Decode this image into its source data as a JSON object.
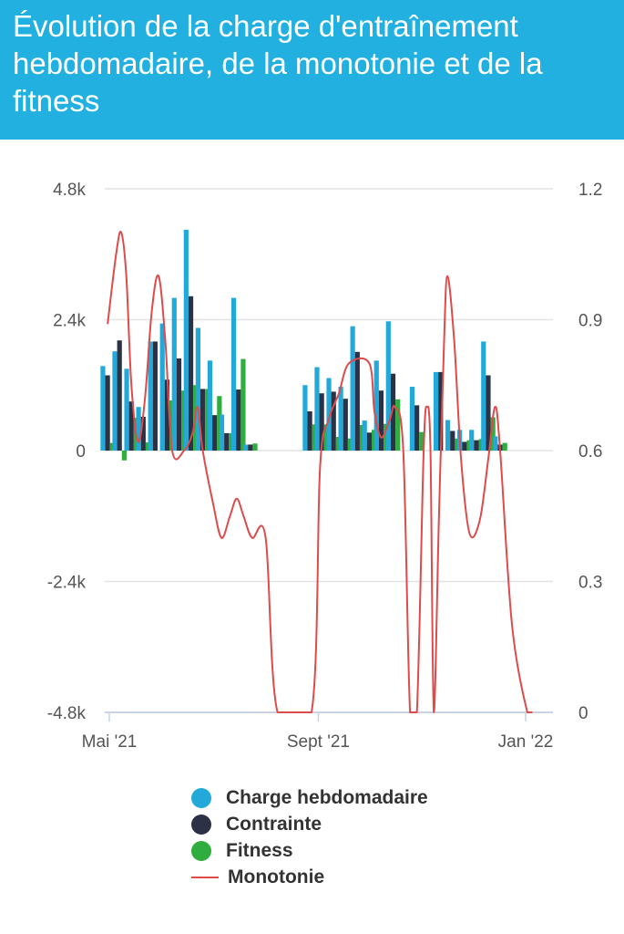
{
  "header": {
    "title": "Évolution de la charge d'entraînement hebdomadaire, de la monotonie et de la fitness"
  },
  "colors": {
    "header_bg": "#22b0e1",
    "charge": "#22a9d9",
    "contrainte": "#2b3245",
    "fitness": "#2fad3e",
    "monotonie": "#dd4b4b"
  },
  "chart_data": {
    "type": "bar",
    "title": "Évolution de la charge d'entraînement hebdomadaire, de la monotonie et de la fitness",
    "x_range": [
      "2021-05-01",
      "2022-01-08"
    ],
    "x_ticks": [
      {
        "date": "2021-05-01",
        "label": "Mai '21"
      },
      {
        "date": "2021-09-01",
        "label": "Sept '21"
      },
      {
        "date": "2022-01-01",
        "label": "Jan '22"
      }
    ],
    "y_left": {
      "min": -4800,
      "max": 4800,
      "ticks": [
        4800,
        2400,
        0,
        -2400,
        -4800
      ],
      "tick_labels": [
        "4.8k",
        "2.4k",
        "0",
        "-2.4k",
        "-4.8k"
      ]
    },
    "y_right": {
      "min": 0,
      "max": 1.2,
      "ticks": [
        1.2,
        0.9,
        0.6,
        0.3,
        0
      ],
      "tick_labels": [
        "1.2",
        "0.9",
        "0.6",
        "0.3",
        "0"
      ]
    },
    "grid": true,
    "legend_position": "bottom",
    "bar_series": [
      {
        "key": "charge",
        "name": "Charge hebdomadaire"
      },
      {
        "key": "contrainte",
        "name": "Contrainte"
      },
      {
        "key": "fitness",
        "name": "Fitness"
      }
    ],
    "weeks": [
      {
        "date": "2021-04-30",
        "charge": 1550,
        "contrainte": 1380,
        "fitness": 140
      },
      {
        "date": "2021-05-07",
        "charge": 1820,
        "contrainte": 2020,
        "fitness": -180
      },
      {
        "date": "2021-05-14",
        "charge": 1500,
        "contrainte": 900,
        "fitness": 600
      },
      {
        "date": "2021-05-21",
        "charge": 800,
        "contrainte": 620,
        "fitness": 150
      },
      {
        "date": "2021-05-28",
        "charge": 2000,
        "contrainte": 2000,
        "fitness": 0
      },
      {
        "date": "2021-06-04",
        "charge": 2330,
        "contrainte": 1300,
        "fitness": 920
      },
      {
        "date": "2021-06-11",
        "charge": 2800,
        "contrainte": 1690,
        "fitness": 1100
      },
      {
        "date": "2021-06-18",
        "charge": 4050,
        "contrainte": 2830,
        "fitness": 1200
      },
      {
        "date": "2021-06-25",
        "charge": 2250,
        "contrainte": 1130,
        "fitness": 1130
      },
      {
        "date": "2021-07-02",
        "charge": 1650,
        "contrainte": 650,
        "fitness": 1000
      },
      {
        "date": "2021-07-09",
        "charge": 660,
        "contrainte": 320,
        "fitness": 320
      },
      {
        "date": "2021-07-16",
        "charge": 2800,
        "contrainte": 1120,
        "fitness": 1680
      },
      {
        "date": "2021-07-23",
        "charge": 110,
        "contrainte": 110,
        "fitness": 130
      },
      {
        "date": "2021-08-27",
        "charge": 1200,
        "contrainte": 720,
        "fitness": 480
      },
      {
        "date": "2021-09-03",
        "charge": 1530,
        "contrainte": 1050,
        "fitness": 480
      },
      {
        "date": "2021-09-10",
        "charge": 1330,
        "contrainte": 1080,
        "fitness": 250
      },
      {
        "date": "2021-09-17",
        "charge": 1170,
        "contrainte": 950,
        "fitness": 220
      },
      {
        "date": "2021-09-24",
        "charge": 2280,
        "contrainte": 1810,
        "fitness": 470
      },
      {
        "date": "2021-10-01",
        "charge": 550,
        "contrainte": 330,
        "fitness": 380
      },
      {
        "date": "2021-10-08",
        "charge": 1650,
        "contrainte": 1100,
        "fitness": 490
      },
      {
        "date": "2021-10-15",
        "charge": 2370,
        "contrainte": 1410,
        "fitness": 940
      },
      {
        "date": "2021-10-29",
        "charge": 1170,
        "contrainte": 830,
        "fitness": 340
      },
      {
        "date": "2021-11-12",
        "charge": 1440,
        "contrainte": 1440,
        "fitness": 0
      },
      {
        "date": "2021-11-19",
        "charge": 560,
        "contrainte": 360,
        "fitness": 220
      },
      {
        "date": "2021-11-26",
        "charge": 380,
        "contrainte": 160,
        "fitness": 190
      },
      {
        "date": "2021-12-03",
        "charge": 380,
        "contrainte": 190,
        "fitness": 210
      },
      {
        "date": "2021-12-10",
        "charge": 2000,
        "contrainte": 1380,
        "fitness": 610
      },
      {
        "date": "2021-12-17",
        "charge": 260,
        "contrainte": 110,
        "fitness": 140
      }
    ],
    "line_series": {
      "name": "Monotonie",
      "axis": "right",
      "points": [
        [
          "2021-04-30",
          0.89
        ],
        [
          "2021-05-05",
          1.05
        ],
        [
          "2021-05-08",
          1.1
        ],
        [
          "2021-05-11",
          1.0
        ],
        [
          "2021-05-14",
          0.75
        ],
        [
          "2021-05-18",
          0.62
        ],
        [
          "2021-05-22",
          0.72
        ],
        [
          "2021-05-26",
          0.92
        ],
        [
          "2021-05-30",
          1.0
        ],
        [
          "2021-06-03",
          0.85
        ],
        [
          "2021-06-07",
          0.6
        ],
        [
          "2021-06-14",
          0.6
        ],
        [
          "2021-06-19",
          0.64
        ],
        [
          "2021-06-22",
          0.7
        ],
        [
          "2021-06-25",
          0.6
        ],
        [
          "2021-07-01",
          0.48
        ],
        [
          "2021-07-06",
          0.4
        ],
        [
          "2021-07-11",
          0.45
        ],
        [
          "2021-07-15",
          0.49
        ],
        [
          "2021-07-19",
          0.45
        ],
        [
          "2021-07-24",
          0.4
        ],
        [
          "2021-08-01",
          0.4
        ],
        [
          "2021-08-08",
          0.0
        ],
        [
          "2021-08-28",
          0.0
        ],
        [
          "2021-09-02",
          0.56
        ],
        [
          "2021-09-07",
          0.67
        ],
        [
          "2021-09-13",
          0.73
        ],
        [
          "2021-09-19",
          0.8
        ],
        [
          "2021-10-01",
          0.8
        ],
        [
          "2021-10-04",
          0.69
        ],
        [
          "2021-10-08",
          0.63
        ],
        [
          "2021-10-13",
          0.67
        ],
        [
          "2021-10-16",
          0.7
        ],
        [
          "2021-10-21",
          0.6
        ],
        [
          "2021-10-25",
          0.0
        ],
        [
          "2021-10-29",
          0.0
        ],
        [
          "2021-11-02",
          0.6
        ],
        [
          "2021-11-04",
          0.7
        ],
        [
          "2021-11-06",
          0.6
        ],
        [
          "2021-11-08",
          0.0
        ],
        [
          "2021-11-11",
          0.45
        ],
        [
          "2021-11-14",
          0.85
        ],
        [
          "2021-11-16",
          1.0
        ],
        [
          "2021-11-20",
          0.85
        ],
        [
          "2021-11-24",
          0.58
        ],
        [
          "2021-11-29",
          0.41
        ],
        [
          "2021-12-05",
          0.44
        ],
        [
          "2021-12-10",
          0.58
        ],
        [
          "2021-12-14",
          0.7
        ],
        [
          "2021-12-17",
          0.6
        ],
        [
          "2021-12-24",
          0.2
        ],
        [
          "2022-01-02",
          0.0
        ],
        [
          "2022-01-05",
          0.0
        ]
      ]
    }
  }
}
